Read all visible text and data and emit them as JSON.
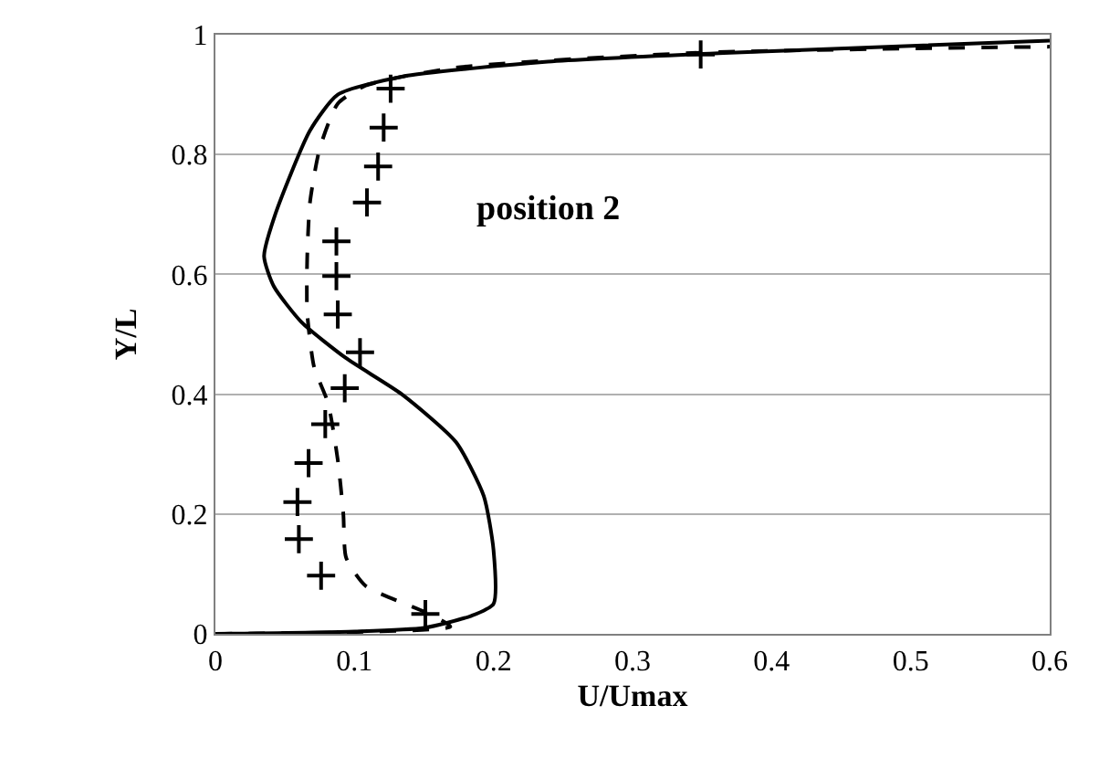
{
  "chart_data": {
    "type": "line",
    "xlabel": "U/Umax",
    "ylabel": "Y/L",
    "xlim": [
      0,
      0.6
    ],
    "xticks": [
      0,
      0.1,
      0.2,
      0.3,
      0.4,
      0.5,
      0.6
    ],
    "ylim": [
      0,
      1
    ],
    "yticks": [
      0,
      0.2,
      0.4,
      0.6,
      0.8,
      1
    ],
    "grid": "y",
    "annotations": [
      "position 2"
    ],
    "series": [
      {
        "line_style": "solid",
        "color": "#000000",
        "marker": "none",
        "x": [
          0,
          0.1,
          0.15,
          0.184,
          0.2,
          0.2,
          0.193,
          0.173,
          0.134,
          0.094,
          0.062,
          0.042,
          0.035,
          0.043,
          0.068,
          0.088,
          0.134,
          0.239,
          0.37,
          0.6
        ],
        "values": [
          0,
          0.004,
          0.01,
          0.03,
          0.05,
          0.14,
          0.23,
          0.32,
          0.4,
          0.46,
          0.52,
          0.58,
          0.63,
          0.7,
          0.84,
          0.9,
          0.93,
          0.955,
          0.97,
          0.99
        ]
      },
      {
        "line_style": "dashed",
        "color": "#000000",
        "marker": "none",
        "x": [
          0,
          0.1,
          0.169,
          0.151,
          0.108,
          0.094,
          0.092,
          0.088,
          0.081,
          0.071,
          0.066,
          0.066,
          0.068,
          0.075,
          0.088,
          0.108,
          0.173,
          0.349,
          0.6
        ],
        "values": [
          0,
          0.003,
          0.012,
          0.036,
          0.08,
          0.127,
          0.2,
          0.29,
          0.385,
          0.445,
          0.536,
          0.627,
          0.72,
          0.81,
          0.885,
          0.915,
          0.945,
          0.97,
          0.98
        ]
      },
      {
        "type": "scatter",
        "marker": "cross",
        "color": "#000000",
        "x": [
          0.151,
          0.076,
          0.06,
          0.059,
          0.067,
          0.079,
          0.093,
          0.104,
          0.088,
          0.087,
          0.087,
          0.109,
          0.117,
          0.121,
          0.126,
          0.349
        ],
        "values": [
          0.033,
          0.097,
          0.158,
          0.22,
          0.285,
          0.35,
          0.41,
          0.47,
          0.533,
          0.597,
          0.655,
          0.72,
          0.78,
          0.845,
          0.91,
          0.967
        ]
      }
    ]
  }
}
